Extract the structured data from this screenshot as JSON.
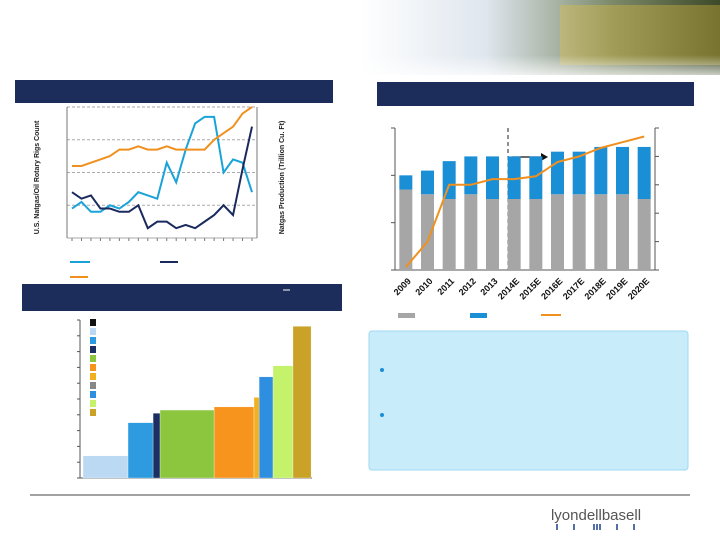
{
  "chart_data": [
    {
      "type": "line",
      "ylabel": "U.S. Natgas/Oil Rotary Rigs Count",
      "y2label": "Natgas Production (Trillion Cu. Ft)",
      "ylim": [
        0,
        4
      ],
      "yticks": [
        0,
        1,
        2,
        3,
        4
      ],
      "y2lim": [
        0,
        4
      ],
      "grid": true,
      "series": [
        {
          "color": "#1aa3d9",
          "values": [
            0.9,
            1.1,
            0.8,
            0.8,
            1.0,
            0.9,
            1.1,
            1.4,
            1.3,
            1.2,
            2.3,
            1.7,
            2.7,
            3.5,
            3.7,
            3.7,
            2.0,
            2.4,
            2.3,
            1.4
          ]
        },
        {
          "color": "#1a2a5e",
          "values": [
            1.4,
            1.2,
            1.3,
            0.9,
            0.9,
            0.8,
            0.8,
            1.0,
            0.3,
            0.5,
            0.5,
            0.3,
            0.4,
            0.3,
            0.5,
            0.7,
            1.0,
            0.7,
            2.1,
            3.4
          ]
        },
        {
          "color": "#f0901e",
          "axis": "y2",
          "values": [
            2.2,
            2.2,
            2.3,
            2.4,
            2.5,
            2.7,
            2.7,
            2.8,
            2.7,
            2.7,
            2.8,
            2.7,
            2.7,
            2.7,
            2.7,
            3.0,
            3.2,
            3.4,
            3.8,
            4.0
          ]
        }
      ]
    },
    {
      "type": "histogram",
      "xlim": [
        0,
        100
      ],
      "ylim": [
        0,
        10
      ],
      "yticks": [
        0,
        1,
        2,
        3,
        4,
        5,
        6,
        7,
        8,
        9,
        10
      ],
      "bins": [
        1.3,
        20.7,
        31.5,
        34.5,
        57.8,
        75,
        77.2,
        83.2,
        91.8,
        99.6
      ],
      "values": [
        1.4,
        3.5,
        4.1,
        4.3,
        4.5,
        5.1,
        6.4,
        7.1,
        9.6
      ],
      "colors": [
        "#bcd9f3",
        "#2e9be0",
        "#1b2f63",
        "#8cc63f",
        "#f7941d",
        "#f2b01e",
        "#2e8fe0",
        "#c4f26a",
        "#c9a227"
      ]
    },
    {
      "type": "bar",
      "categories": [
        "2009",
        "2010",
        "2011",
        "2012",
        "2013",
        "2014E",
        "2015E",
        "2016E",
        "2017E",
        "2018E",
        "2019E",
        "2020E"
      ],
      "ylim": [
        0,
        3
      ],
      "yticks": [
        0,
        1,
        2,
        3
      ],
      "y2lim": [
        0,
        5
      ],
      "y2ticks": [
        0,
        1,
        2,
        3,
        4,
        5
      ],
      "series": [
        {
          "color": "#a6a6a6",
          "values": [
            1.7,
            1.6,
            1.5,
            1.6,
            1.5,
            1.5,
            1.5,
            1.6,
            1.6,
            1.6,
            1.6,
            1.5
          ]
        },
        {
          "color": "#1b8fd6",
          "values": [
            0.3,
            0.5,
            0.8,
            0.8,
            0.9,
            0.9,
            0.9,
            0.9,
            0.9,
            1.0,
            1.0,
            1.1
          ]
        },
        {
          "color": "#f0901e",
          "axis": "y2",
          "values": [
            0.1,
            1.0,
            3.0,
            3.0,
            3.2,
            3.2,
            3.3,
            3.8,
            4.0,
            4.3,
            4.5,
            4.7
          ]
        }
      ]
    }
  ],
  "footer": {
    "logo": "lyondellbasell"
  }
}
